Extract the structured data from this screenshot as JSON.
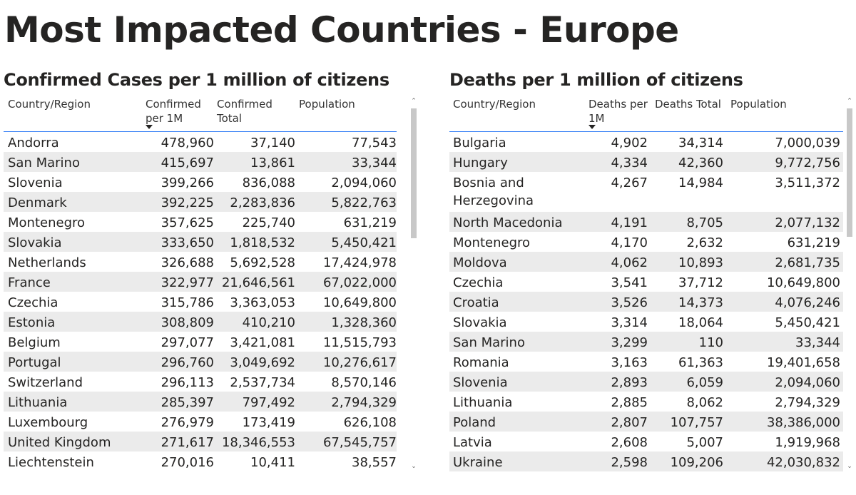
{
  "page": {
    "title": "Most Impacted Countries - Europe"
  },
  "confirmed": {
    "title": "Confirmed Cases per 1 million of citizens",
    "headers": [
      "Country/Region",
      "Confirmed per 1M",
      "Confirmed Total",
      "Population"
    ],
    "rows": [
      [
        "Andorra",
        "478,960",
        "37,140",
        "77,543"
      ],
      [
        "San Marino",
        "415,697",
        "13,861",
        "33,344"
      ],
      [
        "Slovenia",
        "399,266",
        "836,088",
        "2,094,060"
      ],
      [
        "Denmark",
        "392,225",
        "2,283,836",
        "5,822,763"
      ],
      [
        "Montenegro",
        "357,625",
        "225,740",
        "631,219"
      ],
      [
        "Slovakia",
        "333,650",
        "1,818,532",
        "5,450,421"
      ],
      [
        "Netherlands",
        "326,688",
        "5,692,528",
        "17,424,978"
      ],
      [
        "France",
        "322,977",
        "21,646,561",
        "67,022,000"
      ],
      [
        "Czechia",
        "315,786",
        "3,363,053",
        "10,649,800"
      ],
      [
        "Estonia",
        "308,809",
        "410,210",
        "1,328,360"
      ],
      [
        "Belgium",
        "297,077",
        "3,421,081",
        "11,515,793"
      ],
      [
        "Portugal",
        "296,760",
        "3,049,692",
        "10,276,617"
      ],
      [
        "Switzerland",
        "296,113",
        "2,537,734",
        "8,570,146"
      ],
      [
        "Lithuania",
        "285,397",
        "797,492",
        "2,794,329"
      ],
      [
        "Luxembourg",
        "276,979",
        "173,419",
        "626,108"
      ],
      [
        "United Kingdom",
        "271,617",
        "18,346,553",
        "67,545,757"
      ],
      [
        "Liechtenstein",
        "270,016",
        "10,411",
        "38,557"
      ]
    ]
  },
  "deaths": {
    "title": "Deaths per 1 million of citizens",
    "headers": [
      "Country/Region",
      "Deaths per 1M",
      "Deaths Total",
      "Population"
    ],
    "rows": [
      [
        "Bulgaria",
        "4,902",
        "34,314",
        "7,000,039"
      ],
      [
        "Hungary",
        "4,334",
        "42,360",
        "9,772,756"
      ],
      [
        "Bosnia and Herzegovina",
        "4,267",
        "14,984",
        "3,511,372"
      ],
      [
        "North Macedonia",
        "4,191",
        "8,705",
        "2,077,132"
      ],
      [
        "Montenegro",
        "4,170",
        "2,632",
        "631,219"
      ],
      [
        "Moldova",
        "4,062",
        "10,893",
        "2,681,735"
      ],
      [
        "Czechia",
        "3,541",
        "37,712",
        "10,649,800"
      ],
      [
        "Croatia",
        "3,526",
        "14,373",
        "4,076,246"
      ],
      [
        "Slovakia",
        "3,314",
        "18,064",
        "5,450,421"
      ],
      [
        "San Marino",
        "3,299",
        "110",
        "33,344"
      ],
      [
        "Romania",
        "3,163",
        "61,363",
        "19,401,658"
      ],
      [
        "Slovenia",
        "2,893",
        "6,059",
        "2,094,060"
      ],
      [
        "Lithuania",
        "2,885",
        "8,062",
        "2,794,329"
      ],
      [
        "Poland",
        "2,807",
        "107,757",
        "38,386,000"
      ],
      [
        "Latvia",
        "2,608",
        "5,007",
        "1,919,968"
      ],
      [
        "Ukraine",
        "2,598",
        "109,206",
        "42,030,832"
      ]
    ]
  }
}
